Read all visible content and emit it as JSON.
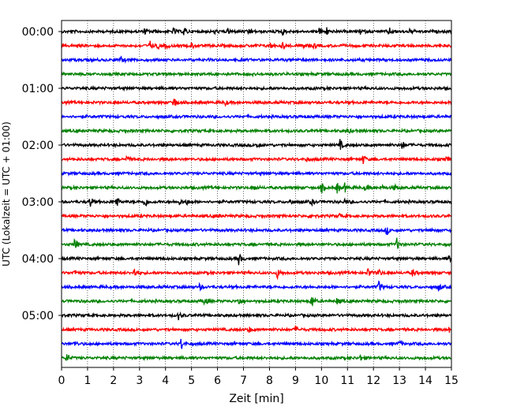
{
  "chart_data": {
    "type": "line",
    "xlabel": "Zeit  [min]",
    "ylabel": "UTC (Lokalzeit = UTC + 01:00)",
    "xlim": [
      0,
      15
    ],
    "x_ticks": [
      "0",
      "1",
      "2",
      "3",
      "4",
      "5",
      "6",
      "7",
      "8",
      "9",
      "10",
      "11",
      "12",
      "13",
      "14",
      "15"
    ],
    "y_ticks": [
      "00:00",
      "01:00",
      "02:00",
      "03:00",
      "04:00",
      "05:00"
    ],
    "trace_interval_minutes": 15,
    "grid": "vertical dotted at each minute",
    "trace_colors": [
      "#000000",
      "#ff0000",
      "#0000ff",
      "#008000"
    ],
    "traces": [
      {
        "start": "00:00",
        "events": [
          [
            3.2,
            0.4
          ],
          [
            3.5,
            0.3
          ],
          [
            4.3,
            0.5
          ],
          [
            4.7,
            0.7
          ],
          [
            5.9,
            0.3
          ],
          [
            6.4,
            0.4
          ],
          [
            7.2,
            0.6
          ],
          [
            8.5,
            0.5
          ],
          [
            9.9,
            0.6
          ],
          [
            10.2,
            0.5
          ],
          [
            11.5,
            0.4
          ],
          [
            12.6,
            0.5
          ],
          [
            13.4,
            0.3
          ]
        ]
      },
      {
        "start": "00:15",
        "events": [
          [
            3.4,
            0.6
          ],
          [
            3.7,
            0.4
          ],
          [
            4.0,
            0.4
          ],
          [
            5.0,
            0.4
          ],
          [
            8.0,
            0.5
          ],
          [
            8.5,
            0.4
          ],
          [
            9.3,
            0.4
          ],
          [
            9.7,
            0.3
          ]
        ]
      },
      {
        "start": "00:30",
        "events": [
          [
            2.3,
            0.4
          ]
        ]
      },
      {
        "start": "00:45",
        "events": []
      },
      {
        "start": "01:00",
        "events": []
      },
      {
        "start": "01:15",
        "events": [
          [
            4.3,
            1.0
          ],
          [
            6.3,
            0.3
          ]
        ]
      },
      {
        "start": "01:30",
        "events": []
      },
      {
        "start": "01:45",
        "events": [
          [
            11.0,
            0.4
          ]
        ]
      },
      {
        "start": "02:00",
        "events": [
          [
            7.5,
            0.4
          ],
          [
            10.7,
            0.8
          ],
          [
            13.1,
            0.6
          ]
        ]
      },
      {
        "start": "02:15",
        "events": [
          [
            2.5,
            0.4
          ],
          [
            9.4,
            0.3
          ],
          [
            11.6,
            0.6
          ],
          [
            14.8,
            0.5
          ]
        ]
      },
      {
        "start": "02:30",
        "events": []
      },
      {
        "start": "02:45",
        "events": [
          [
            7.4,
            0.4
          ],
          [
            10.0,
            0.7
          ],
          [
            10.6,
            0.8
          ],
          [
            10.9,
            0.6
          ],
          [
            11.7,
            0.5
          ],
          [
            12.3,
            0.4
          ],
          [
            12.8,
            0.4
          ]
        ]
      },
      {
        "start": "03:00",
        "events": [
          [
            1.1,
            0.8
          ],
          [
            2.1,
            1.0
          ],
          [
            3.2,
            0.9
          ],
          [
            4.5,
            0.5
          ],
          [
            4.8,
            0.4
          ],
          [
            8.8,
            0.4
          ],
          [
            9.6,
            0.5
          ],
          [
            10.9,
            0.4
          ]
        ]
      },
      {
        "start": "03:15",
        "events": [
          [
            6.0,
            0.3
          ],
          [
            9.6,
            0.4
          ],
          [
            10.7,
            0.3
          ]
        ]
      },
      {
        "start": "03:30",
        "events": [
          [
            12.5,
            0.6
          ],
          [
            14.2,
            0.3
          ]
        ]
      },
      {
        "start": "03:45",
        "events": [
          [
            0.5,
            1.0
          ],
          [
            12.9,
            0.8
          ]
        ]
      },
      {
        "start": "04:00",
        "events": [
          [
            6.8,
            1.0
          ],
          [
            14.9,
            0.4
          ]
        ]
      },
      {
        "start": "04:15",
        "events": [
          [
            0.5,
            0.4
          ],
          [
            2.8,
            0.8
          ],
          [
            8.3,
            0.7
          ],
          [
            11.8,
            0.7
          ],
          [
            12.2,
            0.5
          ],
          [
            13.5,
            0.5
          ]
        ]
      },
      {
        "start": "04:30",
        "events": [
          [
            5.3,
            0.4
          ],
          [
            12.2,
            0.8
          ],
          [
            14.5,
            0.6
          ]
        ]
      },
      {
        "start": "04:45",
        "events": [
          [
            5.5,
            0.6
          ],
          [
            6.8,
            0.7
          ],
          [
            9.6,
            1.2
          ],
          [
            10.6,
            0.5
          ]
        ]
      },
      {
        "start": "05:00",
        "events": [
          [
            4.5,
            0.5
          ]
        ]
      },
      {
        "start": "05:15",
        "events": [
          [
            7.2,
            0.4
          ],
          [
            9.0,
            0.5
          ],
          [
            14.9,
            0.3
          ]
        ]
      },
      {
        "start": "05:30",
        "events": [
          [
            0.5,
            0.4
          ],
          [
            4.6,
            0.8
          ],
          [
            13.0,
            0.4
          ]
        ]
      },
      {
        "start": "05:45",
        "events": [
          [
            0.2,
            0.7
          ],
          [
            11.5,
            0.4
          ]
        ]
      }
    ]
  }
}
